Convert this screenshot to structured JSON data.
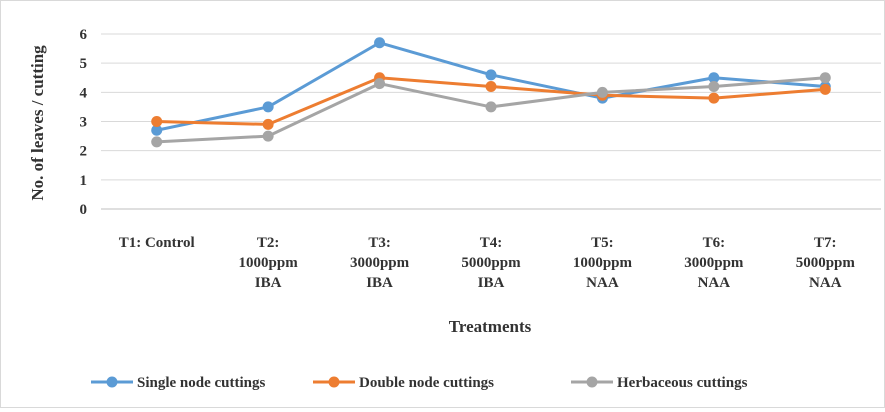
{
  "chart_data": {
    "type": "line",
    "xlabel": "Treatments",
    "ylabel": "No. of leaves / cutting",
    "ylim": [
      0,
      6
    ],
    "yticks": [
      0,
      1,
      2,
      3,
      4,
      5,
      6
    ],
    "grid": true,
    "legend_position": "bottom",
    "categories": [
      [
        "T1: Control"
      ],
      [
        "T2:",
        "1000ppm",
        "IBA"
      ],
      [
        "T3:",
        "3000ppm",
        "IBA"
      ],
      [
        "T4:",
        "5000ppm",
        "IBA"
      ],
      [
        "T5:",
        "1000ppm",
        "NAA"
      ],
      [
        "T6:",
        "3000ppm",
        "NAA"
      ],
      [
        "T7:",
        "5000ppm",
        "NAA"
      ]
    ],
    "series": [
      {
        "name": "Single node cuttings",
        "color": "#5b9bd5",
        "values": [
          2.7,
          3.5,
          5.7,
          4.6,
          3.8,
          4.5,
          4.2
        ]
      },
      {
        "name": "Double node cuttings",
        "color": "#ed7d31",
        "values": [
          3.0,
          2.9,
          4.5,
          4.2,
          3.9,
          3.8,
          4.1
        ]
      },
      {
        "name": "Herbaceous cuttings",
        "color": "#a5a5a5",
        "values": [
          2.3,
          2.5,
          4.3,
          3.5,
          4.0,
          4.2,
          4.5
        ]
      }
    ]
  }
}
